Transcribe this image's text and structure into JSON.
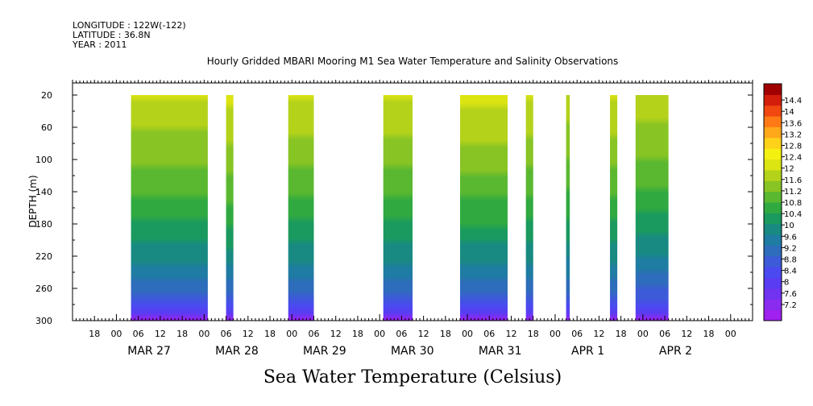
{
  "header": {
    "longitude": "LONGITUDE : 122W(-122)",
    "latitude": "LATITUDE : 36.8N",
    "year": "YEAR : 2011"
  },
  "chart_data": {
    "type": "heatmap",
    "title": "Hourly Gridded MBARI Mooring M1 Sea Water Temperature and Salinity Observations",
    "xlabel": "Sea Water Temperature (Celsius)",
    "ylabel": "DEPTH (m)",
    "xlim_hours": [
      -12,
      174
    ],
    "ylim": [
      300,
      5
    ],
    "y_reversed": true,
    "y_ticks": [
      20,
      60,
      100,
      140,
      180,
      220,
      260,
      300
    ],
    "x_hour_tick_labels": [
      "00",
      "06",
      "12",
      "18"
    ],
    "day_labels": [
      "MAR 27",
      "MAR 28",
      "MAR 29",
      "MAR 30",
      "MAR 31",
      "APR  1",
      "APR  2"
    ],
    "day_starts_hours": [
      0,
      24,
      48,
      72,
      96,
      120,
      144
    ],
    "colorbar": {
      "levels": [
        7.2,
        7.6,
        8,
        8.4,
        8.8,
        9.2,
        9.6,
        10,
        10.4,
        10.8,
        11.2,
        11.6,
        12,
        12.4,
        12.8,
        13.2,
        13.6,
        14,
        14.4
      ],
      "tick_labels": [
        "7.2",
        "7.6",
        "8",
        "8.4",
        "8.8",
        "9.2",
        "9.6",
        "10",
        "10.4",
        "10.8",
        "11.2",
        "11.6",
        "12",
        "12.4",
        "12.8",
        "13.2",
        "13.6",
        "14",
        "14.4"
      ],
      "colors": [
        "#a020f0",
        "#8a2cf0",
        "#7033f0",
        "#5a3cf2",
        "#4a4af0",
        "#3d5ad8",
        "#2e6cbc",
        "#1f7ca2",
        "#188a82",
        "#1a9a5e",
        "#30aa40",
        "#5ab830",
        "#88c424",
        "#b4d21a",
        "#dce412",
        "#f4f010",
        "#ffd21a",
        "#ffa81a",
        "#ff7a14",
        "#f04810",
        "#d41e0c",
        "#a00000"
      ]
    },
    "data_blocks": [
      {
        "start_hour": 4,
        "end_hour": 25,
        "surface_temp": 11.8,
        "deep_temp": 7.4
      },
      {
        "start_hour": 30,
        "end_hour": 32,
        "surface_temp": 11.9,
        "deep_temp": 7.5
      },
      {
        "start_hour": 47,
        "end_hour": 54,
        "surface_temp": 11.8,
        "deep_temp": 7.5
      },
      {
        "start_hour": 73,
        "end_hour": 81,
        "surface_temp": 11.8,
        "deep_temp": 7.5
      },
      {
        "start_hour": 94,
        "end_hour": 107,
        "surface_temp": 11.9,
        "deep_temp": 7.4
      },
      {
        "start_hour": 112,
        "end_hour": 114,
        "surface_temp": 11.8,
        "deep_temp": 7.5
      },
      {
        "start_hour": 123,
        "end_hour": 124,
        "surface_temp": 11.7,
        "deep_temp": 7.5
      },
      {
        "start_hour": 135,
        "end_hour": 137,
        "surface_temp": 11.8,
        "deep_temp": 7.5
      },
      {
        "start_hour": 142,
        "end_hour": 151,
        "surface_temp": 11.7,
        "deep_temp": 7.4
      }
    ],
    "depth_range_with_data": [
      20,
      300
    ]
  }
}
